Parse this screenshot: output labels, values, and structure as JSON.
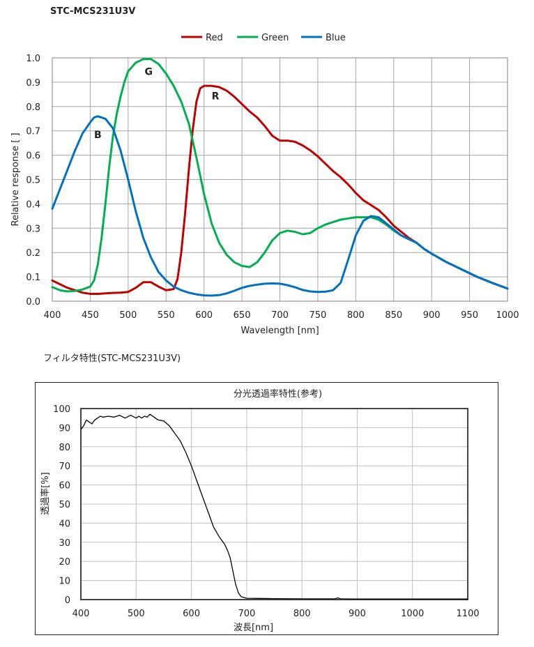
{
  "page": {
    "title": "STC-MCS231U3V",
    "section2_title": "フィルタ特性(STC-MCS231U3V)"
  },
  "chart_data": [
    {
      "type": "line",
      "title": "",
      "xlabel": "Wavelength [nm]",
      "ylabel": "Relative response [ ]",
      "xlim": [
        400,
        1000
      ],
      "ylim": [
        0,
        1.0
      ],
      "x_ticks": [
        400,
        450,
        500,
        550,
        600,
        650,
        700,
        750,
        800,
        850,
        900,
        950,
        1000
      ],
      "y_ticks": [
        0.0,
        0.1,
        0.2,
        0.3,
        0.4,
        0.5,
        0.6,
        0.7,
        0.8,
        0.9,
        1.0
      ],
      "grid": true,
      "legend_position": "top-center",
      "annotations": [
        {
          "text": "G",
          "x": 527,
          "y": 0.93
        },
        {
          "text": "R",
          "x": 615,
          "y": 0.83
        },
        {
          "text": "B",
          "x": 460,
          "y": 0.67
        }
      ],
      "series": [
        {
          "name": "Red",
          "color": "#c00000",
          "points": [
            [
              400,
              0.085
            ],
            [
              410,
              0.07
            ],
            [
              420,
              0.055
            ],
            [
              430,
              0.045
            ],
            [
              440,
              0.035
            ],
            [
              450,
              0.03
            ],
            [
              460,
              0.03
            ],
            [
              470,
              0.032
            ],
            [
              480,
              0.034
            ],
            [
              490,
              0.035
            ],
            [
              500,
              0.038
            ],
            [
              510,
              0.055
            ],
            [
              520,
              0.078
            ],
            [
              530,
              0.078
            ],
            [
              540,
              0.06
            ],
            [
              550,
              0.045
            ],
            [
              560,
              0.05
            ],
            [
              565,
              0.09
            ],
            [
              570,
              0.2
            ],
            [
              575,
              0.36
            ],
            [
              580,
              0.54
            ],
            [
              585,
              0.7
            ],
            [
              590,
              0.82
            ],
            [
              595,
              0.875
            ],
            [
              600,
              0.885
            ],
            [
              610,
              0.885
            ],
            [
              620,
              0.88
            ],
            [
              630,
              0.865
            ],
            [
              640,
              0.84
            ],
            [
              650,
              0.81
            ],
            [
              660,
              0.78
            ],
            [
              670,
              0.755
            ],
            [
              680,
              0.72
            ],
            [
              690,
              0.68
            ],
            [
              700,
              0.66
            ],
            [
              710,
              0.66
            ],
            [
              720,
              0.655
            ],
            [
              730,
              0.64
            ],
            [
              740,
              0.62
            ],
            [
              750,
              0.595
            ],
            [
              760,
              0.565
            ],
            [
              770,
              0.535
            ],
            [
              780,
              0.51
            ],
            [
              790,
              0.48
            ],
            [
              800,
              0.445
            ],
            [
              810,
              0.415
            ],
            [
              820,
              0.395
            ],
            [
              830,
              0.375
            ],
            [
              840,
              0.345
            ],
            [
              850,
              0.31
            ],
            [
              860,
              0.285
            ],
            [
              870,
              0.26
            ],
            [
              880,
              0.24
            ],
            [
              890,
              0.215
            ],
            [
              900,
              0.195
            ],
            [
              920,
              0.16
            ],
            [
              940,
              0.13
            ],
            [
              960,
              0.1
            ],
            [
              980,
              0.075
            ],
            [
              1000,
              0.052
            ]
          ]
        },
        {
          "name": "Green",
          "color": "#00b050",
          "points": [
            [
              400,
              0.058
            ],
            [
              410,
              0.045
            ],
            [
              420,
              0.04
            ],
            [
              430,
              0.042
            ],
            [
              440,
              0.048
            ],
            [
              450,
              0.06
            ],
            [
              455,
              0.085
            ],
            [
              460,
              0.15
            ],
            [
              465,
              0.26
            ],
            [
              470,
              0.4
            ],
            [
              475,
              0.55
            ],
            [
              480,
              0.68
            ],
            [
              485,
              0.77
            ],
            [
              490,
              0.84
            ],
            [
              495,
              0.9
            ],
            [
              500,
              0.945
            ],
            [
              510,
              0.98
            ],
            [
              520,
              0.995
            ],
            [
              530,
              0.995
            ],
            [
              540,
              0.975
            ],
            [
              550,
              0.935
            ],
            [
              560,
              0.885
            ],
            [
              570,
              0.82
            ],
            [
              580,
              0.73
            ],
            [
              590,
              0.59
            ],
            [
              600,
              0.44
            ],
            [
              610,
              0.32
            ],
            [
              620,
              0.24
            ],
            [
              630,
              0.19
            ],
            [
              640,
              0.16
            ],
            [
              650,
              0.145
            ],
            [
              660,
              0.14
            ],
            [
              670,
              0.16
            ],
            [
              680,
              0.2
            ],
            [
              690,
              0.25
            ],
            [
              700,
              0.28
            ],
            [
              710,
              0.29
            ],
            [
              720,
              0.285
            ],
            [
              730,
              0.275
            ],
            [
              740,
              0.28
            ],
            [
              750,
              0.3
            ],
            [
              760,
              0.315
            ],
            [
              770,
              0.325
            ],
            [
              780,
              0.335
            ],
            [
              790,
              0.34
            ],
            [
              800,
              0.345
            ],
            [
              810,
              0.345
            ],
            [
              820,
              0.345
            ],
            [
              830,
              0.335
            ],
            [
              840,
              0.315
            ],
            [
              850,
              0.29
            ],
            [
              860,
              0.27
            ],
            [
              870,
              0.255
            ],
            [
              880,
              0.24
            ],
            [
              890,
              0.215
            ],
            [
              900,
              0.195
            ],
            [
              920,
              0.16
            ],
            [
              940,
              0.13
            ],
            [
              960,
              0.1
            ],
            [
              980,
              0.075
            ],
            [
              1000,
              0.052
            ]
          ]
        },
        {
          "name": "Blue",
          "color": "#0070c0",
          "points": [
            [
              400,
              0.38
            ],
            [
              410,
              0.46
            ],
            [
              420,
              0.54
            ],
            [
              430,
              0.62
            ],
            [
              440,
              0.69
            ],
            [
              450,
              0.735
            ],
            [
              455,
              0.755
            ],
            [
              460,
              0.76
            ],
            [
              470,
              0.75
            ],
            [
              480,
              0.71
            ],
            [
              490,
              0.62
            ],
            [
              500,
              0.5
            ],
            [
              510,
              0.37
            ],
            [
              520,
              0.26
            ],
            [
              530,
              0.18
            ],
            [
              540,
              0.12
            ],
            [
              550,
              0.085
            ],
            [
              560,
              0.06
            ],
            [
              570,
              0.045
            ],
            [
              580,
              0.035
            ],
            [
              590,
              0.028
            ],
            [
              600,
              0.024
            ],
            [
              610,
              0.023
            ],
            [
              620,
              0.025
            ],
            [
              630,
              0.032
            ],
            [
              640,
              0.043
            ],
            [
              650,
              0.055
            ],
            [
              660,
              0.063
            ],
            [
              670,
              0.068
            ],
            [
              680,
              0.072
            ],
            [
              690,
              0.073
            ],
            [
              700,
              0.072
            ],
            [
              710,
              0.066
            ],
            [
              720,
              0.057
            ],
            [
              730,
              0.046
            ],
            [
              740,
              0.04
            ],
            [
              750,
              0.038
            ],
            [
              760,
              0.039
            ],
            [
              770,
              0.045
            ],
            [
              780,
              0.075
            ],
            [
              790,
              0.17
            ],
            [
              800,
              0.27
            ],
            [
              810,
              0.33
            ],
            [
              820,
              0.35
            ],
            [
              830,
              0.345
            ],
            [
              840,
              0.32
            ],
            [
              850,
              0.295
            ],
            [
              860,
              0.27
            ],
            [
              870,
              0.255
            ],
            [
              880,
              0.24
            ],
            [
              890,
              0.215
            ],
            [
              900,
              0.195
            ],
            [
              920,
              0.16
            ],
            [
              940,
              0.13
            ],
            [
              960,
              0.1
            ],
            [
              980,
              0.075
            ],
            [
              1000,
              0.052
            ]
          ]
        }
      ]
    },
    {
      "type": "line",
      "title": "分光透過率特性(参考)",
      "xlabel": "波長[nm]",
      "ylabel": "透過率[%]",
      "xlim": [
        400,
        1100
      ],
      "ylim": [
        0,
        100
      ],
      "x_ticks": [
        400,
        500,
        600,
        700,
        800,
        900,
        1000,
        1100
      ],
      "y_ticks": [
        0,
        10,
        20,
        30,
        40,
        50,
        60,
        70,
        80,
        90,
        100
      ],
      "grid": true,
      "series": [
        {
          "color": "#000000",
          "points": [
            [
              400,
              89
            ],
            [
              405,
              91
            ],
            [
              410,
              94
            ],
            [
              415,
              93
            ],
            [
              420,
              92
            ],
            [
              425,
              94
            ],
            [
              430,
              95
            ],
            [
              435,
              96
            ],
            [
              440,
              95.5
            ],
            [
              450,
              96
            ],
            [
              460,
              95.5
            ],
            [
              470,
              96.5
            ],
            [
              480,
              95
            ],
            [
              490,
              96.5
            ],
            [
              500,
              95
            ],
            [
              505,
              96
            ],
            [
              510,
              95
            ],
            [
              515,
              96
            ],
            [
              520,
              95.5
            ],
            [
              525,
              97
            ],
            [
              530,
              96
            ],
            [
              535,
              95
            ],
            [
              540,
              94
            ],
            [
              550,
              93.5
            ],
            [
              560,
              91
            ],
            [
              570,
              87
            ],
            [
              580,
              83
            ],
            [
              590,
              77
            ],
            [
              600,
              70
            ],
            [
              610,
              62
            ],
            [
              620,
              54
            ],
            [
              630,
              46
            ],
            [
              640,
              38
            ],
            [
              650,
              33
            ],
            [
              660,
              29
            ],
            [
              665,
              26
            ],
            [
              670,
              22
            ],
            [
              675,
              15
            ],
            [
              680,
              8
            ],
            [
              685,
              3.5
            ],
            [
              690,
              1.5
            ],
            [
              700,
              0.7
            ],
            [
              750,
              0.5
            ],
            [
              800,
              0.4
            ],
            [
              850,
              0.4
            ],
            [
              860,
              0.4
            ],
            [
              865,
              0.9
            ],
            [
              870,
              0.4
            ],
            [
              900,
              0.3
            ],
            [
              950,
              0.3
            ],
            [
              1000,
              0.3
            ],
            [
              1050,
              0.3
            ],
            [
              1100,
              0.3
            ]
          ]
        }
      ]
    }
  ]
}
